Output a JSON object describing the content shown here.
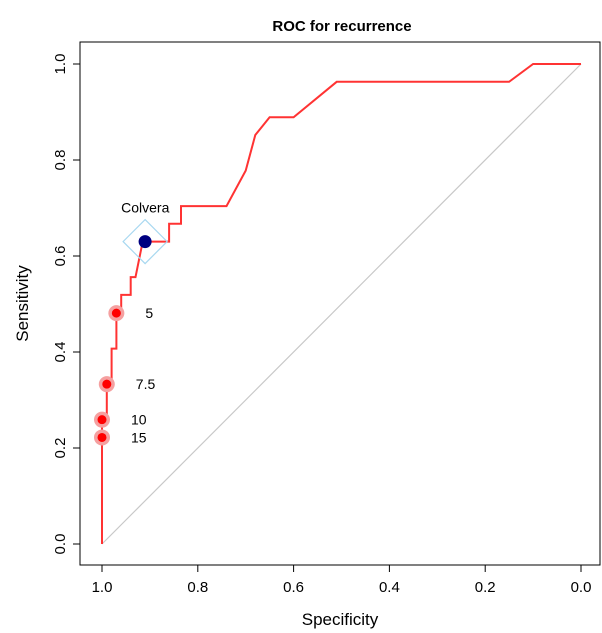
{
  "chart_data": {
    "type": "line",
    "title": "ROC for recurrence",
    "xlabel": "Specificity",
    "ylabel": "Sensitivity",
    "xlim": [
      1.0,
      0.0
    ],
    "ylim": [
      0.0,
      1.0
    ],
    "x_reversed": true,
    "grid": false,
    "legend": "none",
    "x_ticks": [
      "1.0",
      "0.8",
      "0.6",
      "0.4",
      "0.2",
      "0.0"
    ],
    "y_ticks": [
      "0.0",
      "0.2",
      "0.4",
      "0.6",
      "0.8",
      "1.0"
    ],
    "series": [
      {
        "color": "#ff3333",
        "points": [
          [
            1.0,
            0.0
          ],
          [
            1.0,
            0.222
          ],
          [
            1.0,
            0.259
          ],
          [
            0.99,
            0.259
          ],
          [
            0.99,
            0.333
          ],
          [
            0.98,
            0.333
          ],
          [
            0.98,
            0.407
          ],
          [
            0.97,
            0.407
          ],
          [
            0.97,
            0.481
          ],
          [
            0.96,
            0.481
          ],
          [
            0.96,
            0.519
          ],
          [
            0.94,
            0.519
          ],
          [
            0.94,
            0.556
          ],
          [
            0.93,
            0.556
          ],
          [
            0.915,
            0.63
          ],
          [
            0.885,
            0.63
          ],
          [
            0.86,
            0.63
          ],
          [
            0.86,
            0.667
          ],
          [
            0.835,
            0.667
          ],
          [
            0.835,
            0.704
          ],
          [
            0.74,
            0.704
          ],
          [
            0.7,
            0.778
          ],
          [
            0.68,
            0.852
          ],
          [
            0.65,
            0.889
          ],
          [
            0.6,
            0.889
          ],
          [
            0.51,
            0.963
          ],
          [
            0.15,
            0.963
          ],
          [
            0.1,
            1.0
          ],
          [
            0.0,
            1.0
          ]
        ]
      }
    ],
    "reference_line": {
      "from": [
        1.0,
        0.0
      ],
      "to": [
        0.0,
        1.0
      ],
      "color": "#c8c8c8"
    },
    "annotations": [
      {
        "label": "5",
        "x": 0.97,
        "y": 0.481,
        "color": "#ff0000"
      },
      {
        "label": "7.5",
        "x": 0.99,
        "y": 0.333,
        "color": "#ff0000"
      },
      {
        "label": "10",
        "x": 1.0,
        "y": 0.259,
        "color": "#ff0000"
      },
      {
        "label": "15",
        "x": 1.0,
        "y": 0.222,
        "color": "#ff0000"
      },
      {
        "label": "Colvera",
        "x": 0.91,
        "y": 0.63,
        "color": "#000080",
        "marker": "diamond"
      }
    ],
    "line_color": "#ff3333",
    "marker_halo_color": "#f5a0a0",
    "colvera_diamond_color": "#a8d8f0"
  }
}
